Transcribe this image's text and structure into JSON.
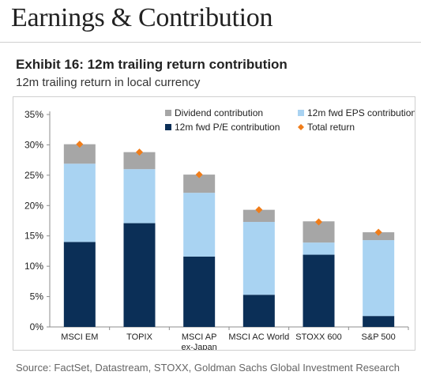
{
  "page": {
    "title": "Earnings & Contribution"
  },
  "exhibit": {
    "title": "Exhibit 16: 12m trailing return contribution",
    "subtitle": "12m trailing return in local currency"
  },
  "source": "Source: FactSet, Datastream, STOXX, Goldman Sachs Global Investment Research",
  "colors": {
    "pe": "#0b2f57",
    "eps": "#a9d3f2",
    "dividend": "#a6a6a6",
    "total": "#f07d1a",
    "axis": "#8c8c8c"
  },
  "chart_data": {
    "type": "bar",
    "stacked": true,
    "categories": [
      [
        "MSCI EM"
      ],
      [
        "TOPIX"
      ],
      [
        "MSCI AP",
        "ex-Japan"
      ],
      [
        "MSCI AC World"
      ],
      [
        "STOXX 600"
      ],
      [
        "S&P 500"
      ]
    ],
    "series": [
      {
        "name": "12m fwd P/E contribution",
        "key": "pe",
        "values": [
          14.0,
          17.1,
          11.6,
          5.3,
          11.9,
          1.8
        ]
      },
      {
        "name": "12m fwd EPS contribution",
        "key": "eps",
        "values": [
          12.9,
          8.9,
          10.5,
          12.0,
          2.0,
          12.5
        ]
      },
      {
        "name": "Dividend contribution",
        "key": "dividend",
        "values": [
          3.2,
          2.8,
          3.0,
          2.0,
          3.5,
          1.3
        ]
      }
    ],
    "total": {
      "name": "Total return",
      "values": [
        30.1,
        28.8,
        25.1,
        19.3,
        17.3,
        15.6
      ]
    },
    "y_ticks": [
      "0%",
      "5%",
      "10%",
      "15%",
      "20%",
      "25%",
      "30%",
      "35%"
    ],
    "ylim": [
      0,
      35
    ],
    "legend_order": [
      "dividend",
      "eps",
      "pe",
      "total"
    ],
    "legend_position": "top-right"
  }
}
